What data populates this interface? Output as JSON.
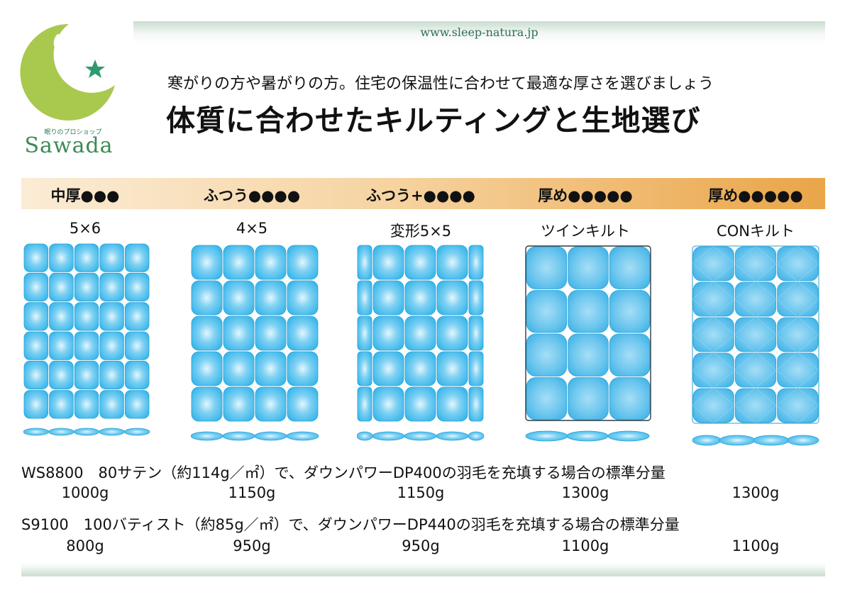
{
  "header": {
    "url": "www.sleep-natura.jp",
    "logo_tagline": "眠りのプロショップ",
    "brand": "Sawada"
  },
  "subtitle": "寒がりの方や暑がりの方。住宅の保温性に合わせて最適な厚さを選びましょう",
  "title": "体質に合わせたキルティングと生地選び",
  "colors": {
    "logo_green": "#a9c94e",
    "star_green": "#2f9a6a",
    "cell_blue": "#38b6ea",
    "level_bar_start": "#fbecd6",
    "level_bar_end": "#eaa548"
  },
  "columns": [
    {
      "level": "中厚●●●",
      "type": "5×6",
      "weight_ws8800": "1000g",
      "weight_s9100": "800g"
    },
    {
      "level": "ふつう●●●●",
      "type": "4×5",
      "weight_ws8800": "1150g",
      "weight_s9100": "950g"
    },
    {
      "level": "ふつう+●●●●",
      "type": "変形5×5",
      "weight_ws8800": "1150g",
      "weight_s9100": "950g"
    },
    {
      "level": "厚め●●●●●",
      "type": "ツインキルト",
      "weight_ws8800": "1300g",
      "weight_s9100": "1100g"
    },
    {
      "level": "厚め●●●●●",
      "type": "CONキルト",
      "weight_ws8800": "1300g",
      "weight_s9100": "1100g"
    }
  ],
  "fabrics": {
    "ws8800": "WS8800　80サテン（約114g／㎡）で、ダウンパワーDP400の羽毛を充填する場合の標準分量",
    "s9100": "S9100　100バティスト（約85g／㎡）で、ダウンパワーDP440の羽毛を充填する場合の標準分量"
  }
}
